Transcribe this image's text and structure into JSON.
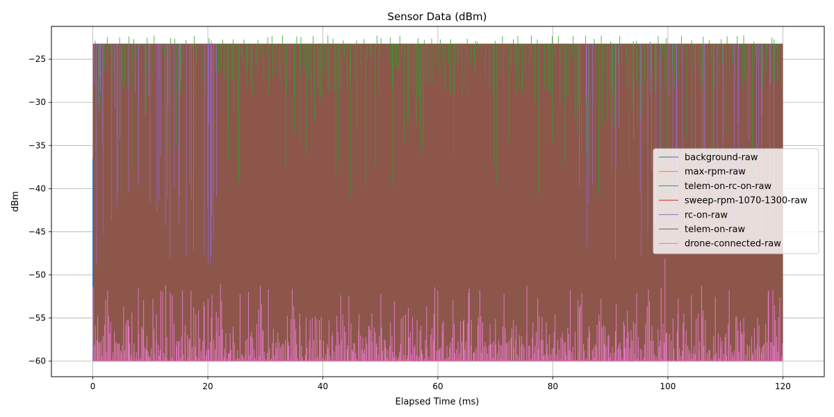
{
  "chart_data": {
    "type": "line",
    "title": "Sensor Data (dBm)",
    "xlabel": "Elapsed Time (ms)",
    "ylabel": "dBm",
    "xlim": [
      -7.2,
      127.2
    ],
    "ylim": [
      -61.8,
      -21.2
    ],
    "xticks": [
      0,
      20,
      40,
      60,
      80,
      100,
      120
    ],
    "yticks": [
      -60,
      -55,
      -50,
      -45,
      -40,
      -35,
      -30,
      -25
    ],
    "x_range": [
      0,
      120
    ],
    "grid": true,
    "legend_position": "right",
    "background_band": {
      "series": "telem-on-raw",
      "min": -60,
      "max": -23.2
    },
    "series": [
      {
        "name": "background-raw",
        "color": "#1f77b4",
        "min": -60,
        "max": -23.2,
        "notable_values": [
          -36.5,
          -50.2
        ]
      },
      {
        "name": "max-rpm-raw",
        "color": "#ff7f0e",
        "min": -60,
        "max": -23.2,
        "notable_values": []
      },
      {
        "name": "telem-on-rc-on-raw",
        "color": "#2ca02c",
        "min": -60,
        "max": -22.3,
        "notable_values": [
          -22.4,
          -22.3,
          -22.5,
          -22.6,
          -38.9,
          -39.5,
          -40.3,
          -35.6,
          -37.0,
          -39.1,
          -36.3,
          -41.2,
          -38.8,
          -35.2
        ]
      },
      {
        "name": "sweep-rpm-1070-1300-raw",
        "color": "#d62728",
        "min": -60,
        "max": -23.2,
        "notable_values": []
      },
      {
        "name": "rc-on-raw",
        "color": "#9467bd",
        "min": -60,
        "max": -23.2,
        "notable_values": [
          -36.6,
          -45.5,
          -31.8,
          -34.7,
          -42.3,
          -38.9,
          -47.0,
          -41.1,
          -40.9,
          -43.3
        ]
      },
      {
        "name": "telem-on-raw",
        "color": "#8c564b",
        "min": -60,
        "max": -23.2,
        "notable_values": []
      },
      {
        "name": "drone-connected-raw",
        "color": "#e377c2",
        "min": -60,
        "max": -48.1,
        "notable_values": [
          -50.8,
          -51.5,
          -49.8,
          -48.1,
          -52.1,
          -51.1,
          -50.6
        ]
      }
    ]
  }
}
